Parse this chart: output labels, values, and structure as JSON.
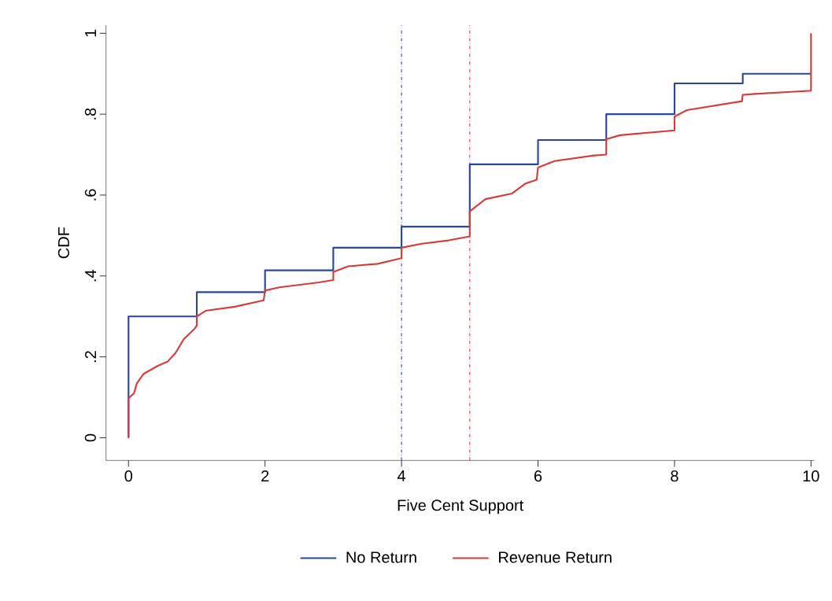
{
  "chart_data": {
    "type": "step",
    "xlabel": "Five Cent Support",
    "ylabel": "CDF",
    "xlim": [
      -0.33,
      10.05
    ],
    "ylim": [
      -0.056,
      1.02
    ],
    "xticks": [
      0,
      2,
      4,
      6,
      8,
      10
    ],
    "yticks": [
      0,
      {
        "value": 0.2,
        "label": ".2"
      },
      {
        "value": 0.4,
        "label": ".4"
      },
      {
        "value": 0.6,
        "label": ".6"
      },
      {
        "value": 0.8,
        "label": ".8"
      },
      1
    ],
    "grid": false,
    "legend": "bottom",
    "marker": "none",
    "line_style": "solid",
    "series": [
      {
        "name": "No Return",
        "color": "#2a46a0",
        "x": [
          0,
          0,
          1,
          2,
          3,
          4,
          5,
          6,
          7,
          8,
          9,
          10
        ],
        "values": [
          0,
          0.3,
          0.36,
          0.414,
          0.47,
          0.522,
          0.676,
          0.736,
          0.8,
          0.876,
          0.9,
          0.9
        ]
      },
      {
        "name": "Revenue Return",
        "color": "#d43c3c",
        "type": "line",
        "x": [
          0,
          0,
          0.08,
          0.12,
          0.22,
          0.43,
          0.57,
          0.69,
          0.81,
          0.97,
          1.0,
          1.0,
          1.13,
          1.56,
          1.98,
          2.0,
          2.21,
          2.79,
          3.0,
          3.0,
          3.22,
          3.65,
          4.0,
          4.0,
          4.3,
          4.69,
          5.0,
          5.0,
          5.23,
          5.62,
          5.81,
          5.98,
          6.0,
          6.24,
          6.82,
          7.0,
          7.0,
          7.2,
          8.0,
          8.0,
          8.18,
          8.99,
          9.0,
          9.18,
          10.0,
          10.0
        ],
        "values": [
          0,
          0.098,
          0.11,
          0.134,
          0.158,
          0.178,
          0.188,
          0.21,
          0.244,
          0.27,
          0.278,
          0.3,
          0.314,
          0.324,
          0.34,
          0.364,
          0.372,
          0.384,
          0.39,
          0.41,
          0.424,
          0.43,
          0.444,
          0.47,
          0.48,
          0.488,
          0.498,
          0.56,
          0.59,
          0.604,
          0.628,
          0.638,
          0.668,
          0.684,
          0.698,
          0.7,
          0.738,
          0.748,
          0.76,
          0.794,
          0.81,
          0.832,
          0.848,
          0.85,
          0.858,
          1.0
        ]
      }
    ],
    "ref_lines": [
      {
        "axis": "x",
        "value": 4,
        "color": "#2a46a0",
        "line_style": "dashdot"
      },
      {
        "axis": "x",
        "value": 5,
        "color": "#d43c3c",
        "line_style": "dashdot"
      }
    ]
  }
}
